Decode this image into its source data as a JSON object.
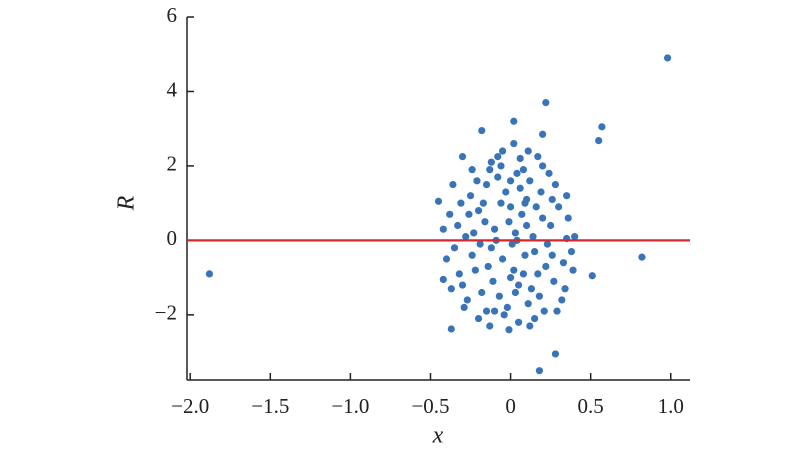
{
  "chart_data": {
    "type": "scatter",
    "xlabel": "x",
    "ylabel": "R",
    "color": "#3a74b8",
    "hline": 0,
    "hline_color": "#d7262b",
    "xlim": [
      -2.02,
      1.12
    ],
    "ylim": [
      -3.75,
      6
    ],
    "xticks": [
      {
        "value": -2.0,
        "label": "−2.0"
      },
      {
        "value": -1.5,
        "label": "−1.5"
      },
      {
        "value": -1.0,
        "label": "−1.0"
      },
      {
        "value": -0.5,
        "label": "−0.5"
      },
      0,
      0.5,
      {
        "value": 1.0,
        "label": "1.0"
      }
    ],
    "yticks": [
      {
        "value": -2,
        "label": "−2"
      },
      0,
      2,
      4,
      6
    ],
    "x": [
      -1.88,
      0.98,
      0.82,
      0.57,
      0.55,
      0.22,
      0.02,
      0.18,
      0.28,
      -0.37,
      -0.45,
      -0.42,
      0.51,
      -0.18,
      0.2,
      -0.08,
      0.17,
      -0.3,
      0.35,
      0.4,
      0.38,
      -0.25,
      -0.2,
      -0.15,
      -0.1,
      -0.05,
      0,
      0.05,
      0.1,
      0.15,
      0.2,
      -0.22,
      -0.18,
      -0.12,
      -0.08,
      -0.02,
      0.03,
      0.08,
      0.12,
      0.18,
      0.25,
      -0.28,
      -0.24,
      -0.16,
      -0.11,
      -0.06,
      0.01,
      0.06,
      0.11,
      0.16,
      0.22,
      -0.3,
      -0.26,
      -0.19,
      -0.13,
      -0.07,
      -0.01,
      0.04,
      0.09,
      0.14,
      0.27,
      -0.33,
      -0.21,
      -0.14,
      -0.09,
      -0.03,
      0.02,
      0.07,
      0.13,
      0.19,
      0.3,
      -0.35,
      -0.27,
      -0.17,
      -0.04,
      0.0,
      0.05,
      0.1,
      0.21,
      0.28,
      0.33,
      -0.31,
      -0.23,
      -0.1,
      -0.06,
      0.03,
      0.08,
      0.15,
      0.24,
      0.32,
      0.36,
      -0.38,
      -0.32,
      -0.2,
      -0.12,
      -0.01,
      0.06,
      0.12,
      0.23,
      0.29,
      0.35,
      -0.4,
      -0.36,
      -0.29,
      -0.15,
      0.0,
      0.04,
      0.09,
      0.17,
      0.26,
      0.34,
      -0.42,
      -0.37,
      -0.24,
      -0.13,
      -0.05,
      0.02,
      0.11,
      0.2,
      0.26,
      0.39
    ],
    "values": [
      -0.9,
      4.9,
      -0.45,
      3.05,
      2.68,
      3.7,
      3.2,
      -3.5,
      -3.05,
      -2.38,
      1.05,
      -1.05,
      -0.95,
      2.95,
      2.85,
      2.25,
      2.25,
      2.25,
      0.05,
      0.1,
      -0.3,
      1.2,
      0.8,
      1.5,
      0.3,
      -0.5,
      0.9,
      -1.2,
      1.1,
      -0.3,
      0.6,
      -0.8,
      -1.4,
      -0.2,
      1.7,
      -1.8,
      0.2,
      -0.9,
      1.6,
      -1.5,
      0.4,
      0.1,
      -0.4,
      0.5,
      -1.1,
      1.0,
      -0.1,
      1.4,
      -1.7,
      0.9,
      -0.7,
      -1.2,
      0.7,
      -0.1,
      1.9,
      -1.5,
      0.5,
      1.8,
      -0.4,
      0.1,
      -1.1,
      0.4,
      1.6,
      -0.7,
      0.0,
      1.3,
      -0.8,
      0.7,
      -1.3,
      1.3,
      0.9,
      -0.2,
      -1.6,
      1.0,
      -2.0,
      1.6,
      -2.2,
      0.4,
      -1.9,
      1.5,
      -0.6,
      1.0,
      0.2,
      -1.9,
      2.0,
      -1.4,
      1.9,
      -2.1,
      1.8,
      -1.6,
      0.6,
      0.7,
      -0.9,
      -2.1,
      2.1,
      -2.4,
      2.2,
      -2.3,
      -0.1,
      -1.9,
      1.2,
      -0.5,
      1.5,
      -1.8,
      -1.9,
      -1.0,
      0.0,
      1.0,
      -0.9,
      -0.4,
      -1.3,
      0.3,
      -1.3,
      1.9,
      -2.3,
      2.4,
      2.6,
      2.4,
      2.0,
      1.1,
      -0.8
    ]
  }
}
